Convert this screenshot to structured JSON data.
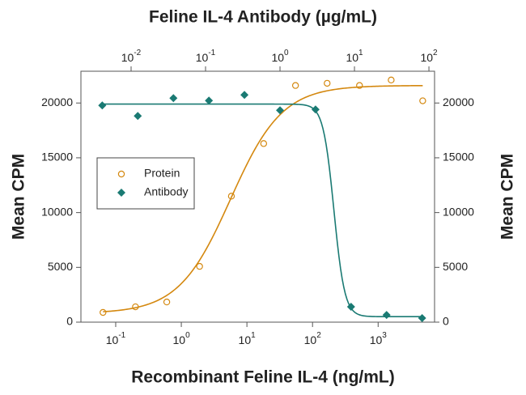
{
  "chart_data": {
    "type": "scatter",
    "x2_label": "Feline IL-4 Antibody (µg/mL)",
    "x_label": "Recombinant Feline IL-4 (ng/mL)",
    "y_label": "Mean CPM",
    "y2_label": "Mean CPM",
    "xscale": "log",
    "x2scale": "log",
    "xlim": [
      0.0295,
      7244
    ],
    "x2lim": [
      0.00212,
      119
    ],
    "ylim": [
      0,
      22900
    ],
    "y2lim": [
      0,
      22900
    ],
    "xticks": [
      {
        "value": 0.1,
        "label": "10",
        "exponent": "-1"
      },
      {
        "value": 1,
        "label": "10",
        "exponent": "0"
      },
      {
        "value": 10,
        "label": "10",
        "exponent": "1"
      },
      {
        "value": 100,
        "label": "10",
        "exponent": "2"
      },
      {
        "value": 1000,
        "label": "10",
        "exponent": "3"
      }
    ],
    "x2ticks": [
      {
        "value": 0.01,
        "label": "10",
        "exponent": "-2"
      },
      {
        "value": 0.1,
        "label": "10",
        "exponent": "-1"
      },
      {
        "value": 1,
        "label": "10",
        "exponent": "0"
      },
      {
        "value": 10,
        "label": "10",
        "exponent": "1"
      },
      {
        "value": 100,
        "label": "10",
        "exponent": "2"
      }
    ],
    "yticks": [
      0,
      5000,
      10000,
      15000,
      20000
    ],
    "y2ticks": [
      0,
      5000,
      10000,
      15000,
      20000
    ],
    "legend": "left",
    "series": [
      {
        "name": "Protein",
        "color": "#d4880f",
        "marker": "circle",
        "axis": "x",
        "x": [
          0.064,
          0.2,
          0.6,
          1.9,
          5.8,
          18,
          55,
          167,
          520,
          1580,
          4780
        ],
        "values": [
          886,
          1400,
          1840,
          5090,
          11500,
          16300,
          21600,
          21800,
          21600,
          22100,
          20200
        ],
        "fit": {
          "bottom": 800,
          "top": 21600,
          "ec50": 5.6,
          "hill": 1.1
        }
      },
      {
        "name": "Antibody",
        "color": "#1a7a73",
        "marker": "diamond",
        "axis": "x2",
        "x": [
          0.0041,
          0.0123,
          0.037,
          0.111,
          0.333,
          1,
          3,
          9,
          27,
          81
        ],
        "values": [
          19780,
          18820,
          20440,
          20220,
          20740,
          19340,
          19410,
          1400,
          660,
          370
        ],
        "fit": {
          "bottom": 500,
          "top": 19900,
          "ec50": 5.3,
          "hill": -6
        }
      }
    ]
  }
}
